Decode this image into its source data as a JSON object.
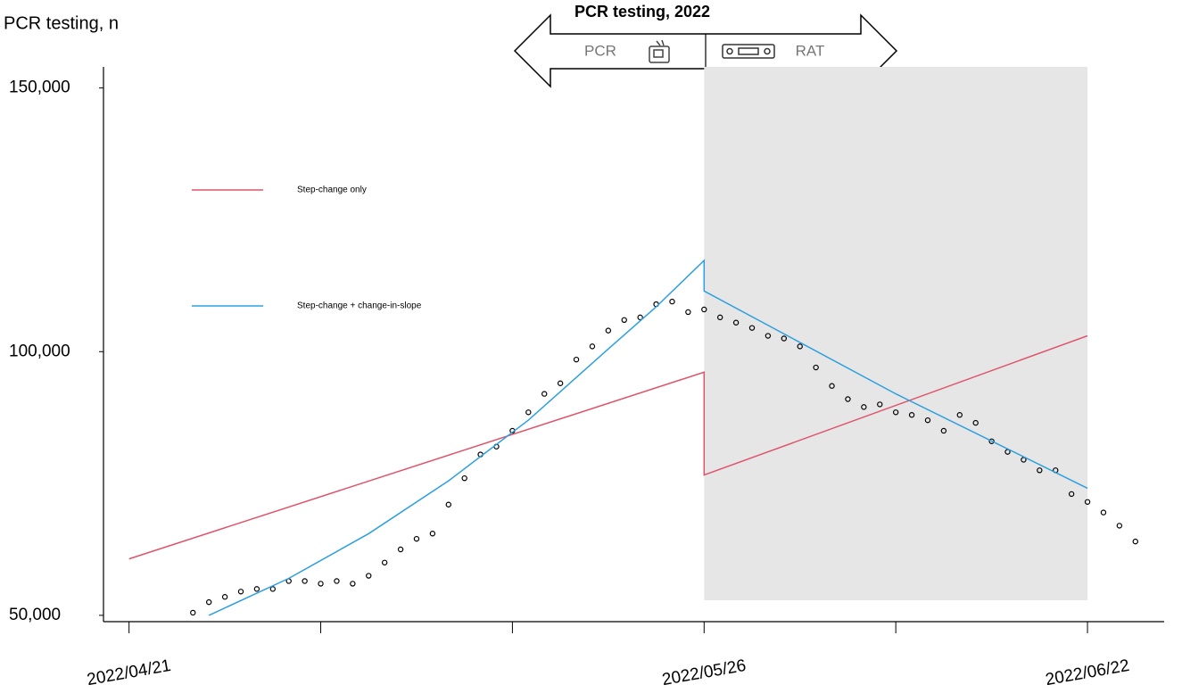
{
  "chart_data": {
    "type": "line",
    "title": "PCR testing, 2022",
    "ylabel": "PCR testing, n",
    "phase_labels": [
      "PCR",
      "RAT"
    ],
    "xlim": [
      -1.6,
      64.8
    ],
    "ylim": [
      48800,
      154000
    ],
    "xticks": [
      {
        "value": 0,
        "label": "2022/04/21"
      },
      {
        "value": 36,
        "label": "2022/05/26"
      },
      {
        "value": 60,
        "label": "2022/06/22"
      }
    ],
    "xminor_ticks": [
      12,
      24,
      48
    ],
    "yticks": [
      {
        "value": 50000,
        "label": "50,000"
      },
      {
        "value": 100000,
        "label": "100,000"
      },
      {
        "value": 150000,
        "label": "150,000"
      }
    ],
    "shaded_region": {
      "xlim": [
        36,
        60
      ],
      "color": "#e6e6e6"
    },
    "legend": "upper left",
    "series": [
      {
        "color": "#000000",
        "marker": "circle",
        "x": [
          4,
          5,
          6,
          7,
          8,
          9,
          10,
          11,
          12,
          13,
          14,
          15,
          16,
          17,
          18,
          19,
          20,
          21,
          22,
          23,
          24,
          25,
          26,
          27,
          28,
          29,
          30,
          31,
          32,
          33,
          34,
          35,
          36,
          37,
          38,
          39,
          40,
          41,
          42,
          43,
          44,
          45,
          46,
          47,
          48,
          49,
          50,
          51,
          52,
          53,
          54,
          55,
          56,
          57,
          58,
          59,
          60,
          61,
          62,
          63
        ],
        "values": [
          50500,
          52500,
          53500,
          54500,
          55000,
          55000,
          56500,
          56500,
          56000,
          56500,
          56000,
          57500,
          60000,
          62500,
          64500,
          65500,
          71000,
          76000,
          80500,
          82000,
          85000,
          88500,
          92000,
          94000,
          98500,
          101000,
          104000,
          106000,
          106500,
          109000,
          109500,
          107500,
          108000,
          106500,
          105500,
          104500,
          103000,
          102500,
          101000,
          97000,
          93500,
          91000,
          89500,
          90000,
          88500,
          88000,
          87000,
          85000,
          88000,
          86500,
          83000,
          81000,
          79500,
          77500,
          77500,
          73000,
          71500,
          69500,
          67000,
          64000
        ]
      },
      {
        "name": "Step-change only",
        "color": "#df536b",
        "x": [
          0,
          36,
          36,
          60
        ],
        "values": [
          60700,
          96100,
          76600,
          103000
        ]
      },
      {
        "name": "Step-change + change-in-slope",
        "color": "#2c9fe0",
        "x": [
          5,
          10,
          15,
          20,
          25,
          30,
          33,
          36,
          36,
          48,
          60
        ],
        "values": [
          50000,
          57000,
          65500,
          75500,
          87000,
          100500,
          108500,
          117300,
          111500,
          92000,
          74100
        ]
      }
    ]
  }
}
